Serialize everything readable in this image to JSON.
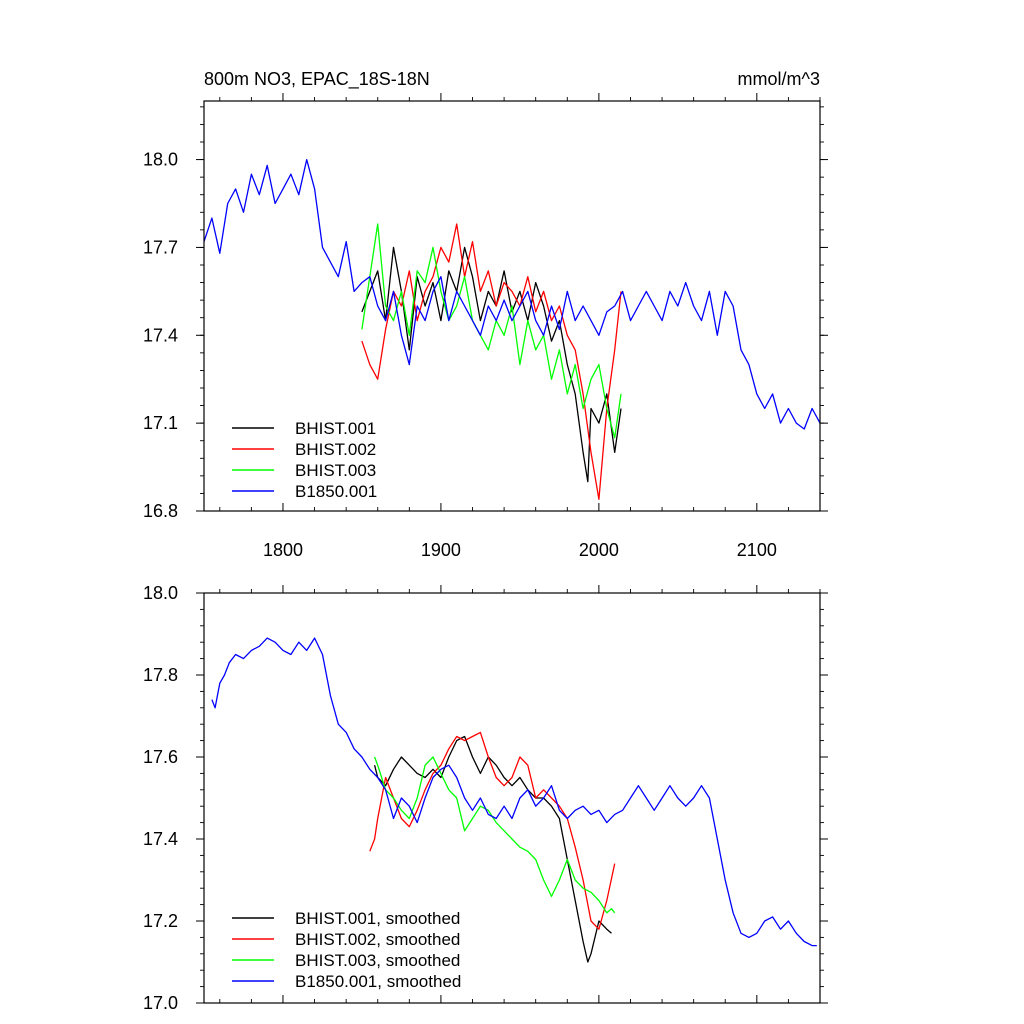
{
  "chart_data": [
    {
      "type": "line",
      "title": "800m NO3, EPAC_18S-18N",
      "units": "mmol/m^3",
      "xlabel": "",
      "ylabel": "",
      "xlim": [
        1750,
        2140
      ],
      "ylim": [
        16.8,
        18.2
      ],
      "xticks": [
        1800,
        1900,
        2000,
        2100
      ],
      "xtick_labels": [
        "1800",
        "1900",
        "2000",
        "2100"
      ],
      "yticks": [
        16.8,
        17.1,
        17.4,
        17.7,
        18.0
      ],
      "ytick_labels": [
        "16.8",
        "17.1",
        "17.4",
        "17.7",
        "18.0"
      ],
      "grid": false,
      "legend_position": "bottom-left",
      "series": [
        {
          "name": "BHIST.001",
          "color": "#000000",
          "x": [
            1850,
            1855,
            1860,
            1865,
            1870,
            1875,
            1880,
            1885,
            1890,
            1895,
            1900,
            1905,
            1910,
            1915,
            1920,
            1925,
            1930,
            1935,
            1940,
            1945,
            1950,
            1955,
            1960,
            1965,
            1970,
            1975,
            1980,
            1985,
            1990,
            1993,
            1995,
            2000,
            2005,
            2010,
            2014
          ],
          "y": [
            17.48,
            17.55,
            17.62,
            17.45,
            17.7,
            17.55,
            17.35,
            17.6,
            17.5,
            17.58,
            17.45,
            17.62,
            17.55,
            17.7,
            17.6,
            17.45,
            17.55,
            17.5,
            17.62,
            17.48,
            17.55,
            17.45,
            17.58,
            17.5,
            17.38,
            17.45,
            17.3,
            17.2,
            17.0,
            16.9,
            17.15,
            17.1,
            17.2,
            17.0,
            17.15
          ]
        },
        {
          "name": "BHIST.002",
          "color": "#ff0000",
          "x": [
            1850,
            1855,
            1860,
            1865,
            1870,
            1875,
            1880,
            1885,
            1890,
            1895,
            1900,
            1905,
            1910,
            1915,
            1920,
            1925,
            1930,
            1935,
            1940,
            1945,
            1950,
            1955,
            1960,
            1965,
            1970,
            1975,
            1980,
            1985,
            1990,
            1995,
            2000,
            2005,
            2010,
            2014
          ],
          "y": [
            17.38,
            17.3,
            17.25,
            17.42,
            17.55,
            17.5,
            17.62,
            17.45,
            17.55,
            17.6,
            17.7,
            17.65,
            17.78,
            17.6,
            17.72,
            17.55,
            17.62,
            17.5,
            17.58,
            17.55,
            17.5,
            17.6,
            17.48,
            17.55,
            17.45,
            17.5,
            17.4,
            17.35,
            17.2,
            17.0,
            16.84,
            17.15,
            17.35,
            17.55
          ]
        },
        {
          "name": "BHIST.003",
          "color": "#00ff00",
          "x": [
            1850,
            1855,
            1860,
            1865,
            1870,
            1875,
            1880,
            1885,
            1890,
            1895,
            1900,
            1905,
            1910,
            1915,
            1920,
            1925,
            1930,
            1935,
            1940,
            1945,
            1950,
            1955,
            1960,
            1965,
            1970,
            1975,
            1980,
            1985,
            1990,
            1995,
            2000,
            2005,
            2010,
            2014
          ],
          "y": [
            17.42,
            17.6,
            17.78,
            17.5,
            17.45,
            17.55,
            17.4,
            17.62,
            17.58,
            17.7,
            17.55,
            17.45,
            17.5,
            17.6,
            17.45,
            17.4,
            17.35,
            17.45,
            17.4,
            17.5,
            17.3,
            17.45,
            17.35,
            17.4,
            17.25,
            17.35,
            17.2,
            17.3,
            17.15,
            17.25,
            17.3,
            17.15,
            17.05,
            17.2
          ]
        },
        {
          "name": "B1850.001",
          "color": "#0000ff",
          "x": [
            1750,
            1755,
            1760,
            1765,
            1770,
            1775,
            1780,
            1785,
            1790,
            1795,
            1800,
            1805,
            1810,
            1815,
            1820,
            1825,
            1830,
            1835,
            1840,
            1845,
            1850,
            1855,
            1860,
            1865,
            1870,
            1875,
            1880,
            1885,
            1890,
            1895,
            1900,
            1905,
            1910,
            1915,
            1920,
            1925,
            1930,
            1935,
            1940,
            1945,
            1950,
            1955,
            1960,
            1965,
            1970,
            1975,
            1980,
            1985,
            1990,
            1995,
            2000,
            2005,
            2010,
            2015,
            2020,
            2025,
            2030,
            2035,
            2040,
            2045,
            2050,
            2055,
            2060,
            2065,
            2070,
            2075,
            2080,
            2085,
            2090,
            2095,
            2100,
            2105,
            2110,
            2115,
            2120,
            2125,
            2130,
            2135,
            2140
          ],
          "y": [
            17.72,
            17.8,
            17.68,
            17.85,
            17.9,
            17.82,
            17.95,
            17.88,
            17.98,
            17.85,
            17.9,
            17.95,
            17.88,
            18.0,
            17.9,
            17.7,
            17.65,
            17.6,
            17.72,
            17.55,
            17.58,
            17.6,
            17.5,
            17.45,
            17.55,
            17.4,
            17.3,
            17.5,
            17.45,
            17.55,
            17.6,
            17.45,
            17.55,
            17.5,
            17.45,
            17.4,
            17.5,
            17.45,
            17.52,
            17.45,
            17.5,
            17.55,
            17.45,
            17.4,
            17.5,
            17.42,
            17.55,
            17.45,
            17.5,
            17.45,
            17.4,
            17.48,
            17.5,
            17.55,
            17.45,
            17.5,
            17.55,
            17.5,
            17.45,
            17.55,
            17.5,
            17.58,
            17.5,
            17.45,
            17.55,
            17.4,
            17.55,
            17.5,
            17.35,
            17.3,
            17.2,
            17.15,
            17.2,
            17.1,
            17.15,
            17.1,
            17.08,
            17.15,
            17.1
          ]
        }
      ]
    },
    {
      "type": "line",
      "title": "",
      "xlabel": "",
      "ylabel": "",
      "xlim": [
        1750,
        2140
      ],
      "ylim": [
        17.0,
        18.0
      ],
      "xticks": [
        1800,
        1900,
        2000,
        2100
      ],
      "xtick_labels": [],
      "yticks": [
        17.0,
        17.2,
        17.4,
        17.6,
        17.8,
        18.0
      ],
      "ytick_labels": [
        "17.0",
        "17.2",
        "17.4",
        "17.6",
        "17.8",
        "18.0"
      ],
      "grid": false,
      "legend_position": "bottom-left",
      "series": [
        {
          "name": "BHIST.001, smoothed",
          "color": "#000000",
          "x": [
            1858,
            1860,
            1865,
            1870,
            1875,
            1880,
            1885,
            1890,
            1895,
            1900,
            1905,
            1910,
            1915,
            1920,
            1925,
            1930,
            1935,
            1940,
            1945,
            1950,
            1955,
            1960,
            1965,
            1970,
            1975,
            1980,
            1985,
            1990,
            1993,
            1995,
            2000,
            2005,
            2008
          ],
          "y": [
            17.58,
            17.55,
            17.53,
            17.57,
            17.6,
            17.58,
            17.56,
            17.55,
            17.57,
            17.55,
            17.6,
            17.64,
            17.65,
            17.6,
            17.56,
            17.6,
            17.58,
            17.55,
            17.53,
            17.55,
            17.52,
            17.5,
            17.5,
            17.48,
            17.45,
            17.35,
            17.25,
            17.15,
            17.1,
            17.12,
            17.2,
            17.18,
            17.17
          ]
        },
        {
          "name": "BHIST.002, smoothed",
          "color": "#ff0000",
          "x": [
            1855,
            1858,
            1860,
            1865,
            1870,
            1875,
            1880,
            1885,
            1890,
            1895,
            1900,
            1905,
            1910,
            1915,
            1920,
            1925,
            1930,
            1935,
            1940,
            1945,
            1950,
            1955,
            1960,
            1965,
            1970,
            1975,
            1980,
            1985,
            1990,
            1995,
            2000,
            2005,
            2010
          ],
          "y": [
            17.37,
            17.4,
            17.45,
            17.55,
            17.5,
            17.45,
            17.43,
            17.47,
            17.52,
            17.56,
            17.58,
            17.62,
            17.65,
            17.64,
            17.65,
            17.66,
            17.6,
            17.55,
            17.53,
            17.55,
            17.6,
            17.58,
            17.5,
            17.52,
            17.5,
            17.48,
            17.45,
            17.38,
            17.3,
            17.2,
            17.18,
            17.25,
            17.34
          ]
        },
        {
          "name": "BHIST.003, smoothed",
          "color": "#00ff00",
          "x": [
            1858,
            1860,
            1865,
            1870,
            1875,
            1880,
            1885,
            1890,
            1895,
            1900,
            1905,
            1910,
            1915,
            1920,
            1925,
            1930,
            1935,
            1940,
            1945,
            1950,
            1955,
            1960,
            1965,
            1970,
            1975,
            1980,
            1985,
            1990,
            1995,
            2000,
            2005,
            2008,
            2010
          ],
          "y": [
            17.6,
            17.58,
            17.52,
            17.5,
            17.47,
            17.45,
            17.5,
            17.58,
            17.6,
            17.56,
            17.52,
            17.5,
            17.42,
            17.45,
            17.48,
            17.47,
            17.44,
            17.42,
            17.4,
            17.38,
            17.37,
            17.35,
            17.3,
            17.26,
            17.3,
            17.35,
            17.3,
            17.28,
            17.27,
            17.25,
            17.22,
            17.23,
            17.22
          ]
        },
        {
          "name": "B1850.001, smoothed",
          "color": "#0000ff",
          "x": [
            1755,
            1757,
            1760,
            1763,
            1766,
            1770,
            1775,
            1780,
            1785,
            1790,
            1795,
            1800,
            1805,
            1810,
            1815,
            1820,
            1825,
            1830,
            1835,
            1840,
            1845,
            1850,
            1855,
            1860,
            1865,
            1870,
            1875,
            1880,
            1885,
            1890,
            1895,
            1900,
            1905,
            1910,
            1915,
            1920,
            1925,
            1930,
            1935,
            1940,
            1945,
            1950,
            1955,
            1960,
            1965,
            1970,
            1975,
            1980,
            1985,
            1990,
            1995,
            2000,
            2005,
            2010,
            2015,
            2020,
            2025,
            2030,
            2035,
            2040,
            2045,
            2050,
            2055,
            2060,
            2065,
            2070,
            2075,
            2080,
            2085,
            2090,
            2095,
            2100,
            2105,
            2110,
            2115,
            2120,
            2125,
            2130,
            2135,
            2138
          ],
          "y": [
            17.74,
            17.72,
            17.78,
            17.8,
            17.83,
            17.85,
            17.84,
            17.86,
            17.87,
            17.89,
            17.88,
            17.86,
            17.85,
            17.88,
            17.86,
            17.89,
            17.85,
            17.75,
            17.68,
            17.66,
            17.62,
            17.6,
            17.57,
            17.55,
            17.52,
            17.45,
            17.5,
            17.48,
            17.44,
            17.5,
            17.55,
            17.57,
            17.58,
            17.55,
            17.5,
            17.47,
            17.5,
            17.46,
            17.45,
            17.48,
            17.45,
            17.5,
            17.52,
            17.48,
            17.5,
            17.53,
            17.47,
            17.45,
            17.47,
            17.48,
            17.46,
            17.47,
            17.44,
            17.46,
            17.47,
            17.5,
            17.53,
            17.5,
            17.47,
            17.5,
            17.53,
            17.5,
            17.48,
            17.5,
            17.53,
            17.5,
            17.4,
            17.3,
            17.22,
            17.17,
            17.16,
            17.17,
            17.2,
            17.21,
            17.18,
            17.2,
            17.17,
            17.15,
            17.14,
            17.14
          ]
        }
      ]
    }
  ]
}
